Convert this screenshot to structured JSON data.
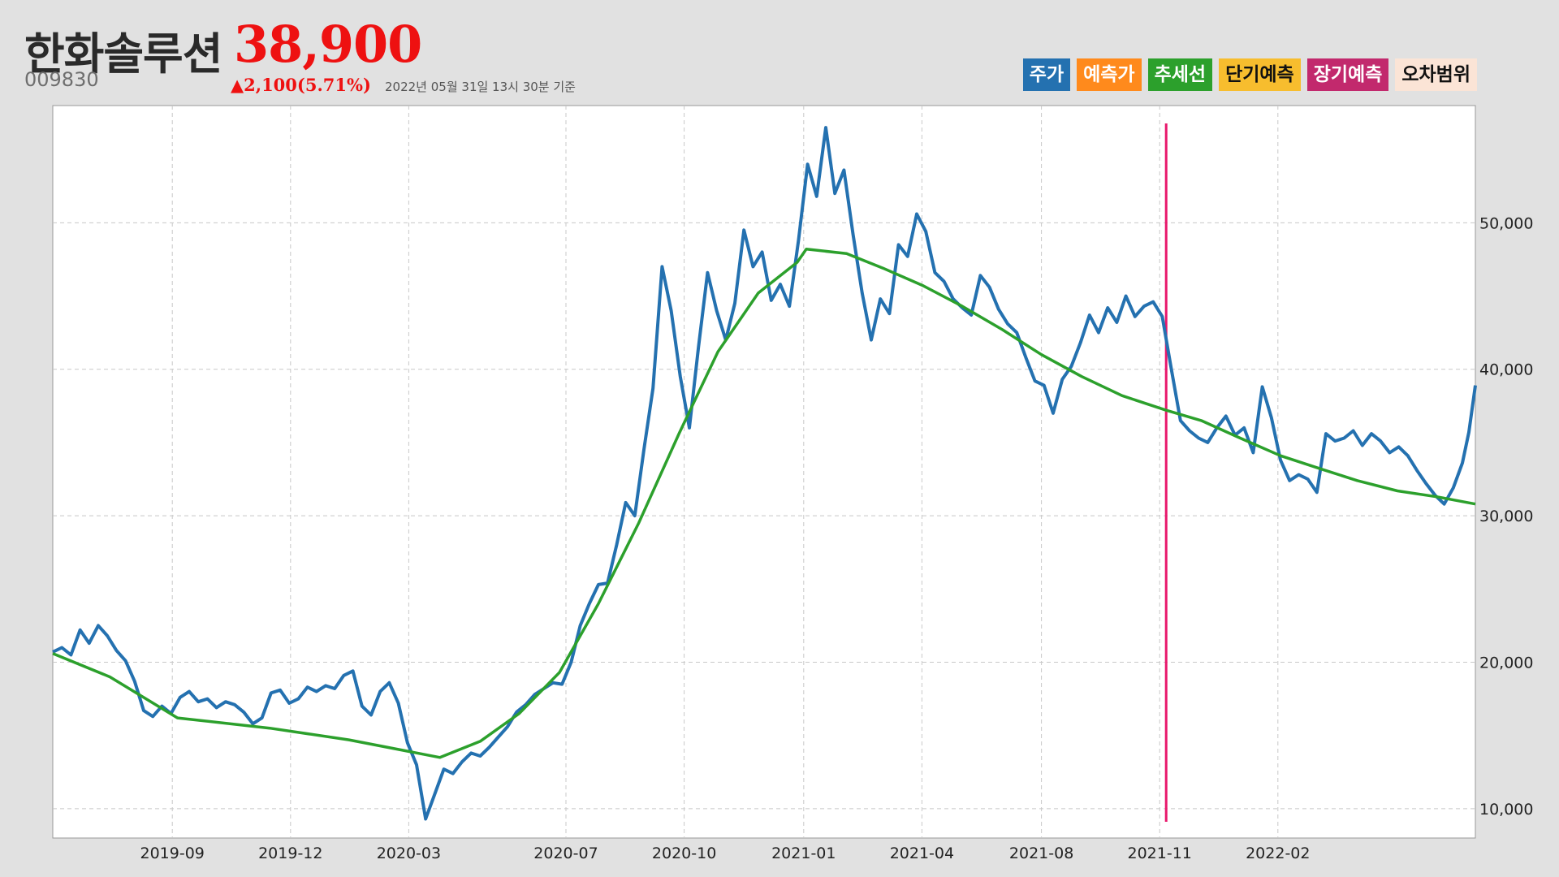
{
  "header": {
    "company_name": "한화솔루션",
    "price": "38,900",
    "ticker": "009830",
    "change": "▲2,100(5.71%)",
    "timestamp": "2022년 05월 31일 13시 30분 기준"
  },
  "legend": [
    {
      "label": "주가",
      "color": "#2471b0",
      "text_color": "#ffffff"
    },
    {
      "label": "예측가",
      "color": "#ff8a1c",
      "text_color": "#ffffff"
    },
    {
      "label": "추세선",
      "color": "#2ca02c",
      "text_color": "#ffffff"
    },
    {
      "label": "단기예측",
      "color": "#f7bd2e",
      "text_color": "#111111"
    },
    {
      "label": "장기예측",
      "color": "#c2296d",
      "text_color": "#ffffff"
    },
    {
      "label": "오차범위",
      "color": "#fbe4d6",
      "text_color": "#111111"
    }
  ],
  "chart_data": {
    "type": "line",
    "x_range": [
      "2019-06-01",
      "2022-05-31"
    ],
    "ylim": [
      8000,
      58000
    ],
    "yticks": [
      10000,
      20000,
      30000,
      40000,
      50000
    ],
    "ytick_labels": [
      "10,000",
      "20,000",
      "30,000",
      "40,000",
      "50,000"
    ],
    "y_axis_side": "right",
    "xticks": [
      {
        "label": "2019-09",
        "date": "2019-09-01"
      },
      {
        "label": "2019-12",
        "date": "2019-12-01"
      },
      {
        "label": "2020-03",
        "date": "2020-03-01"
      },
      {
        "label": "2020-07",
        "date": "2020-06-30"
      },
      {
        "label": "2020-10",
        "date": "2020-09-29"
      },
      {
        "label": "2021-01",
        "date": "2020-12-30"
      },
      {
        "label": "2021-04",
        "date": "2021-03-31"
      },
      {
        "label": "2021-08",
        "date": "2021-07-01"
      },
      {
        "label": "2021-11",
        "date": "2021-09-30"
      },
      {
        "label": "2022-02",
        "date": "2021-12-30"
      }
    ],
    "grid": true,
    "vline": {
      "date": "2021-10-05",
      "color": "#e8176b"
    },
    "series": [
      {
        "name": "주가",
        "color": "#2471b0",
        "points": [
          [
            "2019-06-01",
            20700
          ],
          [
            "2019-06-08",
            21000
          ],
          [
            "2019-06-15",
            20500
          ],
          [
            "2019-06-22",
            22200
          ],
          [
            "2019-06-29",
            21300
          ],
          [
            "2019-07-06",
            22500
          ],
          [
            "2019-07-13",
            21800
          ],
          [
            "2019-07-20",
            20800
          ],
          [
            "2019-07-27",
            20100
          ],
          [
            "2019-08-03",
            18700
          ],
          [
            "2019-08-10",
            16700
          ],
          [
            "2019-08-17",
            16300
          ],
          [
            "2019-08-24",
            17000
          ],
          [
            "2019-08-31",
            16500
          ],
          [
            "2019-09-07",
            17600
          ],
          [
            "2019-09-14",
            18000
          ],
          [
            "2019-09-21",
            17300
          ],
          [
            "2019-09-28",
            17500
          ],
          [
            "2019-10-05",
            16900
          ],
          [
            "2019-10-12",
            17300
          ],
          [
            "2019-10-19",
            17100
          ],
          [
            "2019-10-26",
            16600
          ],
          [
            "2019-11-02",
            15800
          ],
          [
            "2019-11-09",
            16200
          ],
          [
            "2019-11-16",
            17900
          ],
          [
            "2019-11-23",
            18100
          ],
          [
            "2019-11-30",
            17200
          ],
          [
            "2019-12-07",
            17500
          ],
          [
            "2019-12-14",
            18300
          ],
          [
            "2019-12-21",
            18000
          ],
          [
            "2019-12-28",
            18400
          ],
          [
            "2020-01-04",
            18200
          ],
          [
            "2020-01-11",
            19100
          ],
          [
            "2020-01-18",
            19400
          ],
          [
            "2020-01-25",
            17000
          ],
          [
            "2020-02-01",
            16400
          ],
          [
            "2020-02-08",
            18000
          ],
          [
            "2020-02-15",
            18600
          ],
          [
            "2020-02-22",
            17200
          ],
          [
            "2020-02-29",
            14500
          ],
          [
            "2020-03-07",
            13000
          ],
          [
            "2020-03-14",
            9300
          ],
          [
            "2020-03-21",
            11000
          ],
          [
            "2020-03-28",
            12700
          ],
          [
            "2020-04-04",
            12400
          ],
          [
            "2020-04-11",
            13200
          ],
          [
            "2020-04-18",
            13800
          ],
          [
            "2020-04-25",
            13600
          ],
          [
            "2020-05-02",
            14200
          ],
          [
            "2020-05-09",
            14900
          ],
          [
            "2020-05-16",
            15600
          ],
          [
            "2020-05-23",
            16600
          ],
          [
            "2020-05-30",
            17100
          ],
          [
            "2020-06-06",
            17800
          ],
          [
            "2020-06-13",
            18200
          ],
          [
            "2020-06-20",
            18600
          ],
          [
            "2020-06-27",
            18500
          ],
          [
            "2020-07-04",
            20000
          ],
          [
            "2020-07-11",
            22500
          ],
          [
            "2020-07-18",
            24000
          ],
          [
            "2020-07-25",
            25300
          ],
          [
            "2020-08-01",
            25400
          ],
          [
            "2020-08-08",
            28000
          ],
          [
            "2020-08-15",
            30900
          ],
          [
            "2020-08-22",
            30000
          ],
          [
            "2020-08-29",
            34500
          ],
          [
            "2020-09-05",
            38700
          ],
          [
            "2020-09-12",
            47000
          ],
          [
            "2020-09-19",
            44000
          ],
          [
            "2020-09-26",
            39500
          ],
          [
            "2020-10-03",
            36000
          ],
          [
            "2020-10-10",
            41500
          ],
          [
            "2020-10-17",
            46600
          ],
          [
            "2020-10-24",
            44000
          ],
          [
            "2020-10-31",
            42000
          ],
          [
            "2020-11-07",
            44500
          ],
          [
            "2020-11-14",
            49500
          ],
          [
            "2020-11-21",
            47000
          ],
          [
            "2020-11-28",
            48000
          ],
          [
            "2020-12-05",
            44700
          ],
          [
            "2020-12-12",
            45800
          ],
          [
            "2020-12-19",
            44300
          ],
          [
            "2020-12-26",
            48800
          ],
          [
            "2021-01-02",
            54000
          ],
          [
            "2021-01-09",
            51800
          ],
          [
            "2021-01-16",
            56500
          ],
          [
            "2021-01-23",
            52000
          ],
          [
            "2021-01-30",
            53600
          ],
          [
            "2021-02-06",
            49200
          ],
          [
            "2021-02-13",
            45200
          ],
          [
            "2021-02-20",
            42000
          ],
          [
            "2021-02-27",
            44800
          ],
          [
            "2021-03-06",
            43800
          ],
          [
            "2021-03-13",
            48500
          ],
          [
            "2021-03-20",
            47700
          ],
          [
            "2021-03-27",
            50600
          ],
          [
            "2021-04-03",
            49400
          ],
          [
            "2021-04-10",
            46600
          ],
          [
            "2021-04-17",
            46000
          ],
          [
            "2021-04-24",
            44800
          ],
          [
            "2021-05-01",
            44200
          ],
          [
            "2021-05-08",
            43700
          ],
          [
            "2021-05-15",
            46400
          ],
          [
            "2021-05-22",
            45600
          ],
          [
            "2021-05-29",
            44100
          ],
          [
            "2021-06-05",
            43100
          ],
          [
            "2021-06-12",
            42500
          ],
          [
            "2021-06-19",
            40800
          ],
          [
            "2021-06-26",
            39200
          ],
          [
            "2021-07-03",
            38900
          ],
          [
            "2021-07-10",
            37000
          ],
          [
            "2021-07-17",
            39300
          ],
          [
            "2021-07-24",
            40200
          ],
          [
            "2021-07-31",
            41800
          ],
          [
            "2021-08-07",
            43700
          ],
          [
            "2021-08-14",
            42500
          ],
          [
            "2021-08-21",
            44200
          ],
          [
            "2021-08-28",
            43200
          ],
          [
            "2021-09-04",
            45000
          ],
          [
            "2021-09-11",
            43600
          ],
          [
            "2021-09-18",
            44300
          ],
          [
            "2021-09-25",
            44600
          ],
          [
            "2021-10-02",
            43600
          ],
          [
            "2021-10-09",
            40000
          ],
          [
            "2021-10-16",
            36500
          ],
          [
            "2021-10-23",
            35800
          ],
          [
            "2021-10-30",
            35300
          ],
          [
            "2021-11-06",
            35000
          ],
          [
            "2021-11-13",
            36000
          ],
          [
            "2021-11-20",
            36800
          ],
          [
            "2021-11-27",
            35500
          ],
          [
            "2021-12-04",
            36000
          ],
          [
            "2021-12-11",
            34300
          ],
          [
            "2021-12-18",
            38800
          ],
          [
            "2021-12-25",
            36700
          ],
          [
            "2022-01-01",
            33800
          ],
          [
            "2022-01-08",
            32400
          ],
          [
            "2022-01-15",
            32800
          ],
          [
            "2022-01-22",
            32500
          ],
          [
            "2022-01-29",
            31600
          ],
          [
            "2022-02-05",
            35600
          ],
          [
            "2022-02-12",
            35100
          ],
          [
            "2022-02-19",
            35300
          ],
          [
            "2022-02-26",
            35800
          ],
          [
            "2022-03-05",
            34800
          ],
          [
            "2022-03-12",
            35600
          ],
          [
            "2022-03-19",
            35100
          ],
          [
            "2022-03-26",
            34300
          ],
          [
            "2022-04-02",
            34700
          ],
          [
            "2022-04-09",
            34100
          ],
          [
            "2022-04-16",
            33100
          ],
          [
            "2022-04-23",
            32200
          ],
          [
            "2022-04-30",
            31400
          ],
          [
            "2022-05-07",
            30800
          ],
          [
            "2022-05-14",
            31900
          ],
          [
            "2022-05-21",
            33600
          ],
          [
            "2022-05-26",
            35700
          ],
          [
            "2022-05-31",
            38900
          ]
        ]
      },
      {
        "name": "추세선",
        "color": "#2ca02c",
        "points": [
          [
            "2019-06-01",
            20600
          ],
          [
            "2019-07-15",
            19000
          ],
          [
            "2019-09-05",
            16200
          ],
          [
            "2019-11-15",
            15500
          ],
          [
            "2020-01-15",
            14700
          ],
          [
            "2020-03-25",
            13500
          ],
          [
            "2020-04-25",
            14600
          ],
          [
            "2020-05-25",
            16500
          ],
          [
            "2020-06-25",
            19300
          ],
          [
            "2020-07-25",
            24000
          ],
          [
            "2020-08-25",
            29500
          ],
          [
            "2020-09-25",
            35600
          ],
          [
            "2020-10-25",
            41200
          ],
          [
            "2020-11-25",
            45200
          ],
          [
            "2020-12-25",
            47300
          ],
          [
            "2021-01-01",
            48200
          ],
          [
            "2021-02-01",
            47900
          ],
          [
            "2021-03-01",
            46900
          ],
          [
            "2021-04-01",
            45700
          ],
          [
            "2021-05-01",
            44300
          ],
          [
            "2021-06-01",
            42700
          ],
          [
            "2021-07-01",
            41000
          ],
          [
            "2021-08-01",
            39500
          ],
          [
            "2021-09-01",
            38200
          ],
          [
            "2021-10-05",
            37200
          ],
          [
            "2021-11-01",
            36500
          ],
          [
            "2021-12-01",
            35300
          ],
          [
            "2022-01-01",
            34100
          ],
          [
            "2022-02-01",
            33200
          ],
          [
            "2022-03-01",
            32400
          ],
          [
            "2022-04-01",
            31700
          ],
          [
            "2022-05-01",
            31300
          ],
          [
            "2022-05-31",
            30800
          ]
        ]
      }
    ]
  }
}
